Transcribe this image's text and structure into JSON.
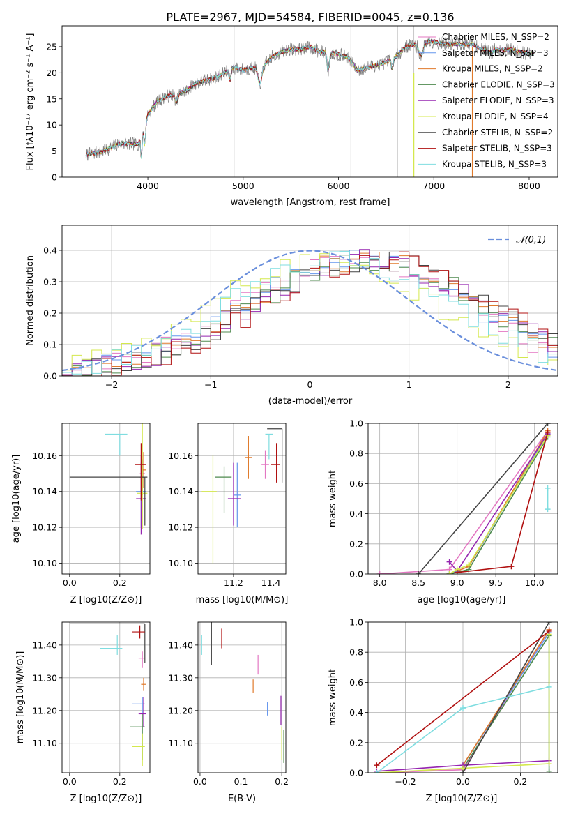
{
  "figure": {
    "title": "PLATE=2967, MJD=54584, FIBERID=0045, z=0.136"
  },
  "colors": {
    "chabrier_miles": "#e377c2",
    "salpeter_miles": "#6495ed",
    "kroupa_miles": "#e07a2b",
    "chabrier_elodie": "#4e8a4e",
    "salpeter_elodie": "#9525b0",
    "kroupa_elodie": "#d4e84d",
    "chabrier_stelib": "#444444",
    "salpeter_stelib": "#b01010",
    "kroupa_stelib": "#7fdde0",
    "data": "#808080",
    "gaussian": "#6a8fdc"
  },
  "chart_data": [
    {
      "id": "spectrum",
      "type": "line",
      "xlabel": "wavelength [Angstrom, rest frame]",
      "ylabel": "Flux [f_λ 10^-17 erg cm^-2 s^-1 A^-1]",
      "xlim": [
        3100,
        8300
      ],
      "ylim": [
        0,
        29
      ],
      "xticks": [
        4000,
        5000,
        6000,
        7000,
        8000
      ],
      "yticks": [
        0,
        5,
        10,
        15,
        20,
        25
      ],
      "grid": false,
      "legend_position": "top-right",
      "continuum_anchors": {
        "x": [
          3350,
          3500,
          3600,
          3700,
          3800,
          3900,
          4000,
          4100,
          4200,
          4300,
          4400,
          4500,
          4600,
          4700,
          4800,
          4900,
          5000,
          5100,
          5200,
          5300,
          5400,
          5500,
          5600,
          5700,
          5800,
          5900,
          6000,
          6100,
          6200,
          6300,
          6400,
          6500,
          6600,
          6700,
          6800,
          6900,
          7000,
          7100,
          7200,
          7300,
          7400,
          7500,
          7600,
          7700,
          7800,
          7900,
          8050
        ],
        "y": [
          4.3,
          4.8,
          5.5,
          6.5,
          6.4,
          6.3,
          12,
          14.5,
          15.5,
          16,
          16.5,
          18,
          18.5,
          19,
          20,
          21,
          20.5,
          21,
          21,
          23,
          24,
          24.5,
          24.5,
          25,
          24,
          24,
          23.5,
          23,
          20.5,
          21,
          21.5,
          22,
          23,
          25,
          25.5,
          26,
          26,
          25.5,
          25.5,
          25.5,
          25.5,
          24.5,
          24.8,
          24.3,
          24.5,
          24,
          23.5
        ]
      },
      "legend": [
        "Chabrier MILES, N_SSP=2",
        "Salpeter MILES, N_SSP=3",
        "Kroupa MILES, N_SSP=2",
        "Chabrier ELODIE, N_SSP=3",
        "Salpeter ELODIE, N_SSP=3",
        "Kroupa ELODIE, N_SSP=4",
        "Chabrier STELIB, N_SSP=2",
        "Salpeter STELIB, N_SSP=3",
        "Kroupa STELIB, N_SSP=3"
      ]
    },
    {
      "id": "residuals",
      "type": "line",
      "xlabel": "(data-model)/error",
      "ylabel": "Normed distribution",
      "xlim": [
        -2.5,
        2.5
      ],
      "ylim": [
        0,
        0.48
      ],
      "xticks": [
        -2,
        -1,
        0,
        1,
        2
      ],
      "yticks": [
        0.0,
        0.1,
        0.2,
        0.3,
        0.4
      ],
      "grid": true,
      "legend_position": "top-right",
      "gaussian": {
        "label": "𝒩(0,1)",
        "mean": 0,
        "sigma": 1
      },
      "hist_bins": {
        "start": -2.5,
        "width": 0.1,
        "count": 50
      },
      "hist_peak_centers": [
        0.45,
        0.5,
        0.55,
        0.6,
        0.6,
        0.15,
        0.65,
        0.7,
        0.3
      ]
    },
    {
      "id": "age_vs_Z",
      "type": "scatter",
      "xlabel": "Z [log10(Z/Z⊙)]",
      "ylabel": "age [log10(age/yr)]",
      "xlim": [
        -0.03,
        0.32
      ],
      "ylim": [
        10.094,
        10.178
      ],
      "xticks": [
        0.0,
        0.2
      ],
      "yticks": [
        10.1,
        10.12,
        10.14,
        10.16
      ],
      "grid": true,
      "points": [
        {
          "x": 0.29,
          "y": 10.15,
          "xerr": [
            0.01,
            0.01
          ],
          "yerr": [
            0.01,
            0.01
          ]
        },
        {
          "x": 0.285,
          "y": 10.14,
          "xerr": [
            0.02,
            0.02
          ],
          "yerr": [
            0.02,
            0.02
          ]
        },
        {
          "x": 0.295,
          "y": 10.152,
          "xerr": [
            0.01,
            0.01
          ],
          "yerr": [
            0.01,
            0.01
          ]
        },
        {
          "x": 0.29,
          "y": 10.148,
          "xerr": [
            0.01,
            0.01
          ],
          "yerr": [
            0.01,
            0.01
          ]
        },
        {
          "x": 0.285,
          "y": 10.136,
          "xerr": [
            0.02,
            0.02
          ],
          "yerr": [
            0.02,
            0.02
          ]
        },
        {
          "x": 0.29,
          "y": 10.139,
          "xerr": [
            0.02,
            0.02
          ],
          "yerr": [
            0.02,
            0.04
          ]
        },
        {
          "x": 0.3,
          "y": 10.148,
          "xerr": [
            0.3,
            0.01
          ],
          "yerr": [
            0.027,
            0.0
          ]
        },
        {
          "x": 0.285,
          "y": 10.155,
          "xerr": [
            0.025,
            0.02
          ],
          "yerr": [
            0.02,
            0.012
          ]
        },
        {
          "x": 0.2,
          "y": 10.172,
          "xerr": [
            0.06,
            0.03
          ],
          "yerr": [
            0.012,
            0.0
          ]
        }
      ]
    },
    {
      "id": "age_vs_mass",
      "type": "scatter",
      "xlabel": "mass [log10(M/M⊙)]",
      "ylabel": "",
      "xlim": [
        11.01,
        11.48
      ],
      "ylim": [
        10.094,
        10.178
      ],
      "xticks": [
        11.2,
        11.4
      ],
      "yticks": [
        10.1,
        10.12,
        10.14,
        10.16
      ],
      "grid": true,
      "points": [
        {
          "x": 11.37,
          "y": 10.155,
          "xerr": [
            0.02,
            0.02
          ],
          "yerr": [
            0.008,
            0.008
          ]
        },
        {
          "x": 11.22,
          "y": 10.138,
          "xerr": [
            0.02,
            0.02
          ],
          "yerr": [
            0.018,
            0.018
          ]
        },
        {
          "x": 11.28,
          "y": 10.159,
          "xerr": [
            0.02,
            0.02
          ],
          "yerr": [
            0.012,
            0.012
          ]
        },
        {
          "x": 11.15,
          "y": 10.148,
          "xerr": [
            0.05,
            0.04
          ],
          "yerr": [
            0.02,
            0.006
          ]
        },
        {
          "x": 11.2,
          "y": 10.136,
          "xerr": [
            0.03,
            0.04
          ],
          "yerr": [
            0.015,
            0.02
          ]
        },
        {
          "x": 11.09,
          "y": 10.14,
          "xerr": [
            0.06,
            0.02
          ],
          "yerr": [
            0.04,
            0.02
          ]
        },
        {
          "x": 11.46,
          "y": 10.175,
          "xerr": [
            0.08,
            0.0
          ],
          "yerr": [
            0.03,
            0.0
          ]
        },
        {
          "x": 11.43,
          "y": 10.155,
          "xerr": [
            0.03,
            0.02
          ],
          "yerr": [
            0.01,
            0.012
          ]
        },
        {
          "x": 11.39,
          "y": 10.172,
          "xerr": [
            0.02,
            0.02
          ],
          "yerr": [
            0.014,
            0.0
          ]
        }
      ]
    },
    {
      "id": "massweight_vs_age",
      "type": "line",
      "xlabel": "age [log10(age/yr)]",
      "ylabel": "mass weight",
      "xlim": [
        7.85,
        10.3
      ],
      "ylim": [
        0,
        1
      ],
      "xticks": [
        8.0,
        8.5,
        9.0,
        9.5,
        10.0
      ],
      "yticks": [
        0.0,
        0.2,
        0.4,
        0.6,
        0.8,
        1.0
      ],
      "grid": true,
      "series": [
        {
          "x": [
            8.0,
            8.9,
            10.17
          ],
          "y": [
            0.0,
            0.03,
            0.95
          ]
        },
        {
          "x": [
            8.9,
            9.0,
            9.15,
            10.17
          ],
          "y": [
            0.0,
            0.02,
            0.05,
            0.93
          ]
        },
        {
          "x": [
            9.0,
            9.15,
            10.17
          ],
          "y": [
            0.02,
            0.05,
            0.95
          ]
        },
        {
          "x": [
            8.9,
            9.15,
            10.17
          ],
          "y": [
            0.0,
            0.03,
            0.91
          ]
        },
        {
          "x": [
            8.9,
            9.0,
            10.17
          ],
          "y": [
            0.08,
            0.02,
            0.93
          ]
        },
        {
          "x": [
            8.9,
            9.0,
            9.15,
            10.17
          ],
          "y": [
            0.0,
            0.03,
            0.06,
            0.92
          ]
        },
        {
          "x": [
            8.5,
            10.17
          ],
          "y": [
            0.0,
            1.0
          ]
        },
        {
          "x": [
            9.0,
            9.7,
            10.17
          ],
          "y": [
            0.01,
            0.05,
            0.94
          ]
        },
        {
          "x": [
            10.17,
            10.17
          ],
          "y": [
            0.43,
            0.57
          ]
        }
      ]
    },
    {
      "id": "mass_vs_Z",
      "type": "scatter",
      "xlabel": "Z [log10(Z/Z⊙)]",
      "ylabel": "mass [log10(M/M⊙)]",
      "xlim": [
        -0.03,
        0.32
      ],
      "ylim": [
        11.01,
        11.47
      ],
      "xticks": [
        0.0,
        0.2
      ],
      "yticks": [
        11.1,
        11.2,
        11.3,
        11.4
      ],
      "grid": true,
      "points": [
        {
          "x": 0.29,
          "y": 11.36,
          "xerr": [
            0.015,
            0.01
          ],
          "yerr": [
            0.03,
            0.02
          ]
        },
        {
          "x": 0.29,
          "y": 11.22,
          "xerr": [
            0.04,
            0.01
          ],
          "yerr": [
            0.03,
            0.02
          ]
        },
        {
          "x": 0.295,
          "y": 11.28,
          "xerr": [
            0.01,
            0.01
          ],
          "yerr": [
            0.02,
            0.02
          ]
        },
        {
          "x": 0.29,
          "y": 11.15,
          "xerr": [
            0.05,
            0.01
          ],
          "yerr": [
            0.1,
            0.04
          ]
        },
        {
          "x": 0.295,
          "y": 11.19,
          "xerr": [
            0.02,
            0.01
          ],
          "yerr": [
            0.04,
            0.05
          ]
        },
        {
          "x": 0.29,
          "y": 11.09,
          "xerr": [
            0.04,
            0.01
          ],
          "yerr": [
            0.06,
            0.04
          ]
        },
        {
          "x": 0.3,
          "y": 11.465,
          "xerr": [
            0.3,
            0.0
          ],
          "yerr": [
            0.12,
            0.0
          ]
        },
        {
          "x": 0.28,
          "y": 11.44,
          "xerr": [
            0.03,
            0.02
          ],
          "yerr": [
            0.02,
            0.02
          ]
        },
        {
          "x": 0.19,
          "y": 11.39,
          "xerr": [
            0.07,
            0.02
          ],
          "yerr": [
            0.02,
            0.04
          ]
        }
      ]
    },
    {
      "id": "mass_vs_ebv",
      "type": "scatter",
      "xlabel": "E(B-V)",
      "ylabel": "",
      "xlim": [
        -0.005,
        0.21
      ],
      "ylim": [
        11.01,
        11.47
      ],
      "xticks": [
        0.0,
        0.1,
        0.2
      ],
      "yticks": [
        11.1,
        11.2,
        11.3,
        11.4
      ],
      "grid": true,
      "points": [
        {
          "x": 0.142,
          "y": 11.34,
          "xerr": [
            0,
            0
          ],
          "yerr": [
            0.03,
            0.03
          ]
        },
        {
          "x": 0.165,
          "y": 11.205,
          "xerr": [
            0,
            0
          ],
          "yerr": [
            0.02,
            0.02
          ]
        },
        {
          "x": 0.13,
          "y": 11.275,
          "xerr": [
            0,
            0
          ],
          "yerr": [
            0.02,
            0.02
          ]
        },
        {
          "x": 0.205,
          "y": 11.09,
          "xerr": [
            0,
            0
          ],
          "yerr": [
            0.05,
            0.05
          ]
        },
        {
          "x": 0.198,
          "y": 11.2,
          "xerr": [
            0,
            0
          ],
          "yerr": [
            0.045,
            0.045
          ]
        },
        {
          "x": 0.2,
          "y": 11.09,
          "xerr": [
            0,
            0
          ],
          "yerr": [
            0.04,
            0.06
          ]
        },
        {
          "x": 0.028,
          "y": 11.405,
          "xerr": [
            0,
            0
          ],
          "yerr": [
            0.065,
            0.065
          ]
        },
        {
          "x": 0.053,
          "y": 11.42,
          "xerr": [
            0,
            0
          ],
          "yerr": [
            0.03,
            0.03
          ]
        },
        {
          "x": 0.004,
          "y": 11.4,
          "xerr": [
            0,
            0
          ],
          "yerr": [
            0.03,
            0.03
          ]
        }
      ]
    },
    {
      "id": "massweight_vs_Z",
      "type": "line",
      "xlabel": "Z [log10(Z/Z⊙)]",
      "ylabel": "mass weight",
      "xlim": [
        -0.33,
        0.33
      ],
      "ylim": [
        0,
        1
      ],
      "xticks": [
        -0.2,
        0.0,
        0.2
      ],
      "yticks": [
        0.0,
        0.2,
        0.4,
        0.6,
        0.8,
        1.0
      ],
      "grid": true,
      "series": [
        {
          "x": [
            -0.3,
            0.0,
            0.3
          ],
          "y": [
            0.0,
            0.02,
            0.95
          ]
        },
        {
          "x": [
            0.0,
            0.3
          ],
          "y": [
            0.05,
            0.93
          ]
        },
        {
          "x": [
            0.0,
            0.3
          ],
          "y": [
            0.05,
            0.95
          ]
        },
        {
          "x": [
            0.0,
            0.3,
            0.3
          ],
          "y": [
            0.03,
            0.91,
            0.01
          ]
        },
        {
          "x": [
            -0.3,
            0.0,
            0.3
          ],
          "y": [
            0.01,
            0.05,
            0.08
          ]
        },
        {
          "x": [
            -0.3,
            0.0,
            0.3,
            0.3
          ],
          "y": [
            0.0,
            0.03,
            0.06,
            0.92
          ]
        },
        {
          "x": [
            0.0,
            0.3
          ],
          "y": [
            0.0,
            1.0
          ]
        },
        {
          "x": [
            -0.3,
            0.3
          ],
          "y": [
            0.05,
            0.94
          ]
        },
        {
          "x": [
            -0.3,
            0.0,
            0.3
          ],
          "y": [
            0.0,
            0.43,
            0.57
          ]
        }
      ]
    }
  ]
}
